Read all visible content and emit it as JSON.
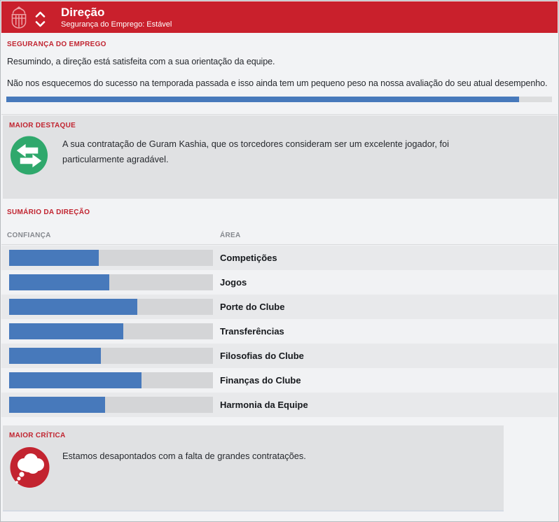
{
  "header": {
    "title": "Direção",
    "subtitle": "Segurança do Emprego: Estável"
  },
  "job_security": {
    "heading": "SEGURANÇA DO EMPREGO",
    "paragraphs": [
      "Resumindo, a direção está satisfeita com a sua orientação da equipe.",
      "Não nos esquecemos do sucesso na temporada passada e isso ainda tem um pequeno peso na nossa avaliação do seu atual desempenho."
    ],
    "confidence_percent": 94
  },
  "highlight": {
    "heading": "MAIOR DESTAQUE",
    "icon": "transfer-arrows-icon",
    "icon_color": "#2fa86c",
    "text": "A sua contratação de Guram Kashia, que os torcedores consideram ser um excelente jogador, foi particularmente agradável."
  },
  "summary": {
    "heading": "SUMÁRIO DA DIREÇÃO",
    "col_confidence": "CONFIANÇA",
    "col_area": "ÁREA",
    "rows": [
      {
        "label": "Competições",
        "percent": 44
      },
      {
        "label": "Jogos",
        "percent": 49
      },
      {
        "label": "Porte do Clube",
        "percent": 63
      },
      {
        "label": "Transferências",
        "percent": 56
      },
      {
        "label": "Filosofias do Clube",
        "percent": 45
      },
      {
        "label": "Finanças do Clube",
        "percent": 65
      },
      {
        "label": "Harmonia da Equipe",
        "percent": 47
      }
    ]
  },
  "criticism": {
    "heading": "MAIOR CRÍTICA",
    "icon": "thought-bubble-icon",
    "icon_color": "#c32430",
    "text": "Estamos desapontados com a falta de grandes contratações."
  },
  "colors": {
    "header_red": "#c9202c",
    "accent_blue": "#4779bb",
    "heading_red": "#c12430",
    "panel_gray": "#e0e1e3",
    "highlight_green": "#2fa86c",
    "criticism_red": "#c32430"
  }
}
